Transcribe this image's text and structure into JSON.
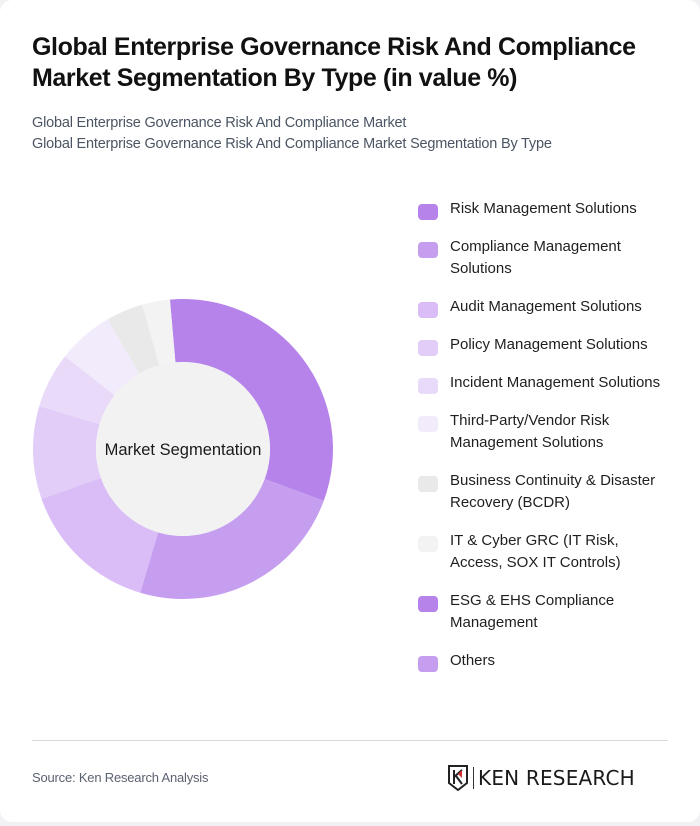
{
  "header": {
    "title": "Global Enterprise Governance Risk And Compliance Market Segmentation By Type (in value %)",
    "subtitle_line1": "Global Enterprise Governance Risk And Compliance Market",
    "subtitle_line2": "Global Enterprise Governance Risk And Compliance Market Segmentation By Type"
  },
  "chart": {
    "center_label": "Market Segmentation"
  },
  "legend": [
    {
      "label": "Risk Management Solutions",
      "color": "#b583ea"
    },
    {
      "label": "Compliance Management Solutions",
      "color": "#c69ef0"
    },
    {
      "label": "Audit Management Solutions",
      "color": "#dabdf6"
    },
    {
      "label": "Policy Management Solutions",
      "color": "#e1cdf7"
    },
    {
      "label": "Incident Management Solutions",
      "color": "#e9dafa"
    },
    {
      "label": "Third-Party/Vendor Risk Management Solutions",
      "color": "#f2ebfc"
    },
    {
      "label": "Business Continuity & Disaster Recovery (BCDR)",
      "color": "#e9e9e9"
    },
    {
      "label": "IT & Cyber GRC (IT Risk, Access, SOX IT Controls)",
      "color": "#f3f3f3"
    },
    {
      "label": "ESG & EHS Compliance Management",
      "color": "#b583ea"
    },
    {
      "label": "Others",
      "color": "#c69ef0"
    }
  ],
  "footer": {
    "source": "Source: Ken Research Analysis",
    "logo_text": "KEN RESEARCH"
  },
  "chart_data": {
    "type": "pie",
    "variant": "donut",
    "title": "Global Enterprise Governance Risk And Compliance Market Segmentation By Type (in value %)",
    "center_label": "Market Segmentation",
    "legend_position": "right",
    "categories": [
      "Risk Management Solutions",
      "Compliance Management Solutions",
      "Audit Management Solutions",
      "Policy Management Solutions",
      "Incident Management Solutions",
      "Third-Party/Vendor Risk Management Solutions",
      "Business Continuity & Disaster Recovery (BCDR)",
      "IT & Cyber GRC (IT Risk, Access, SOX IT Controls)",
      "ESG & EHS Compliance Management",
      "Others"
    ],
    "values": [
      32,
      24,
      15,
      10,
      6,
      6,
      4,
      3,
      0,
      0
    ],
    "colors": [
      "#b583ea",
      "#c69ef0",
      "#dabdf6",
      "#e1cdf7",
      "#e9dafa",
      "#f2ebfc",
      "#e9e9e9",
      "#f3f3f3",
      "#b583ea",
      "#c69ef0"
    ],
    "start_angle_deg": -5,
    "unit": "%"
  }
}
